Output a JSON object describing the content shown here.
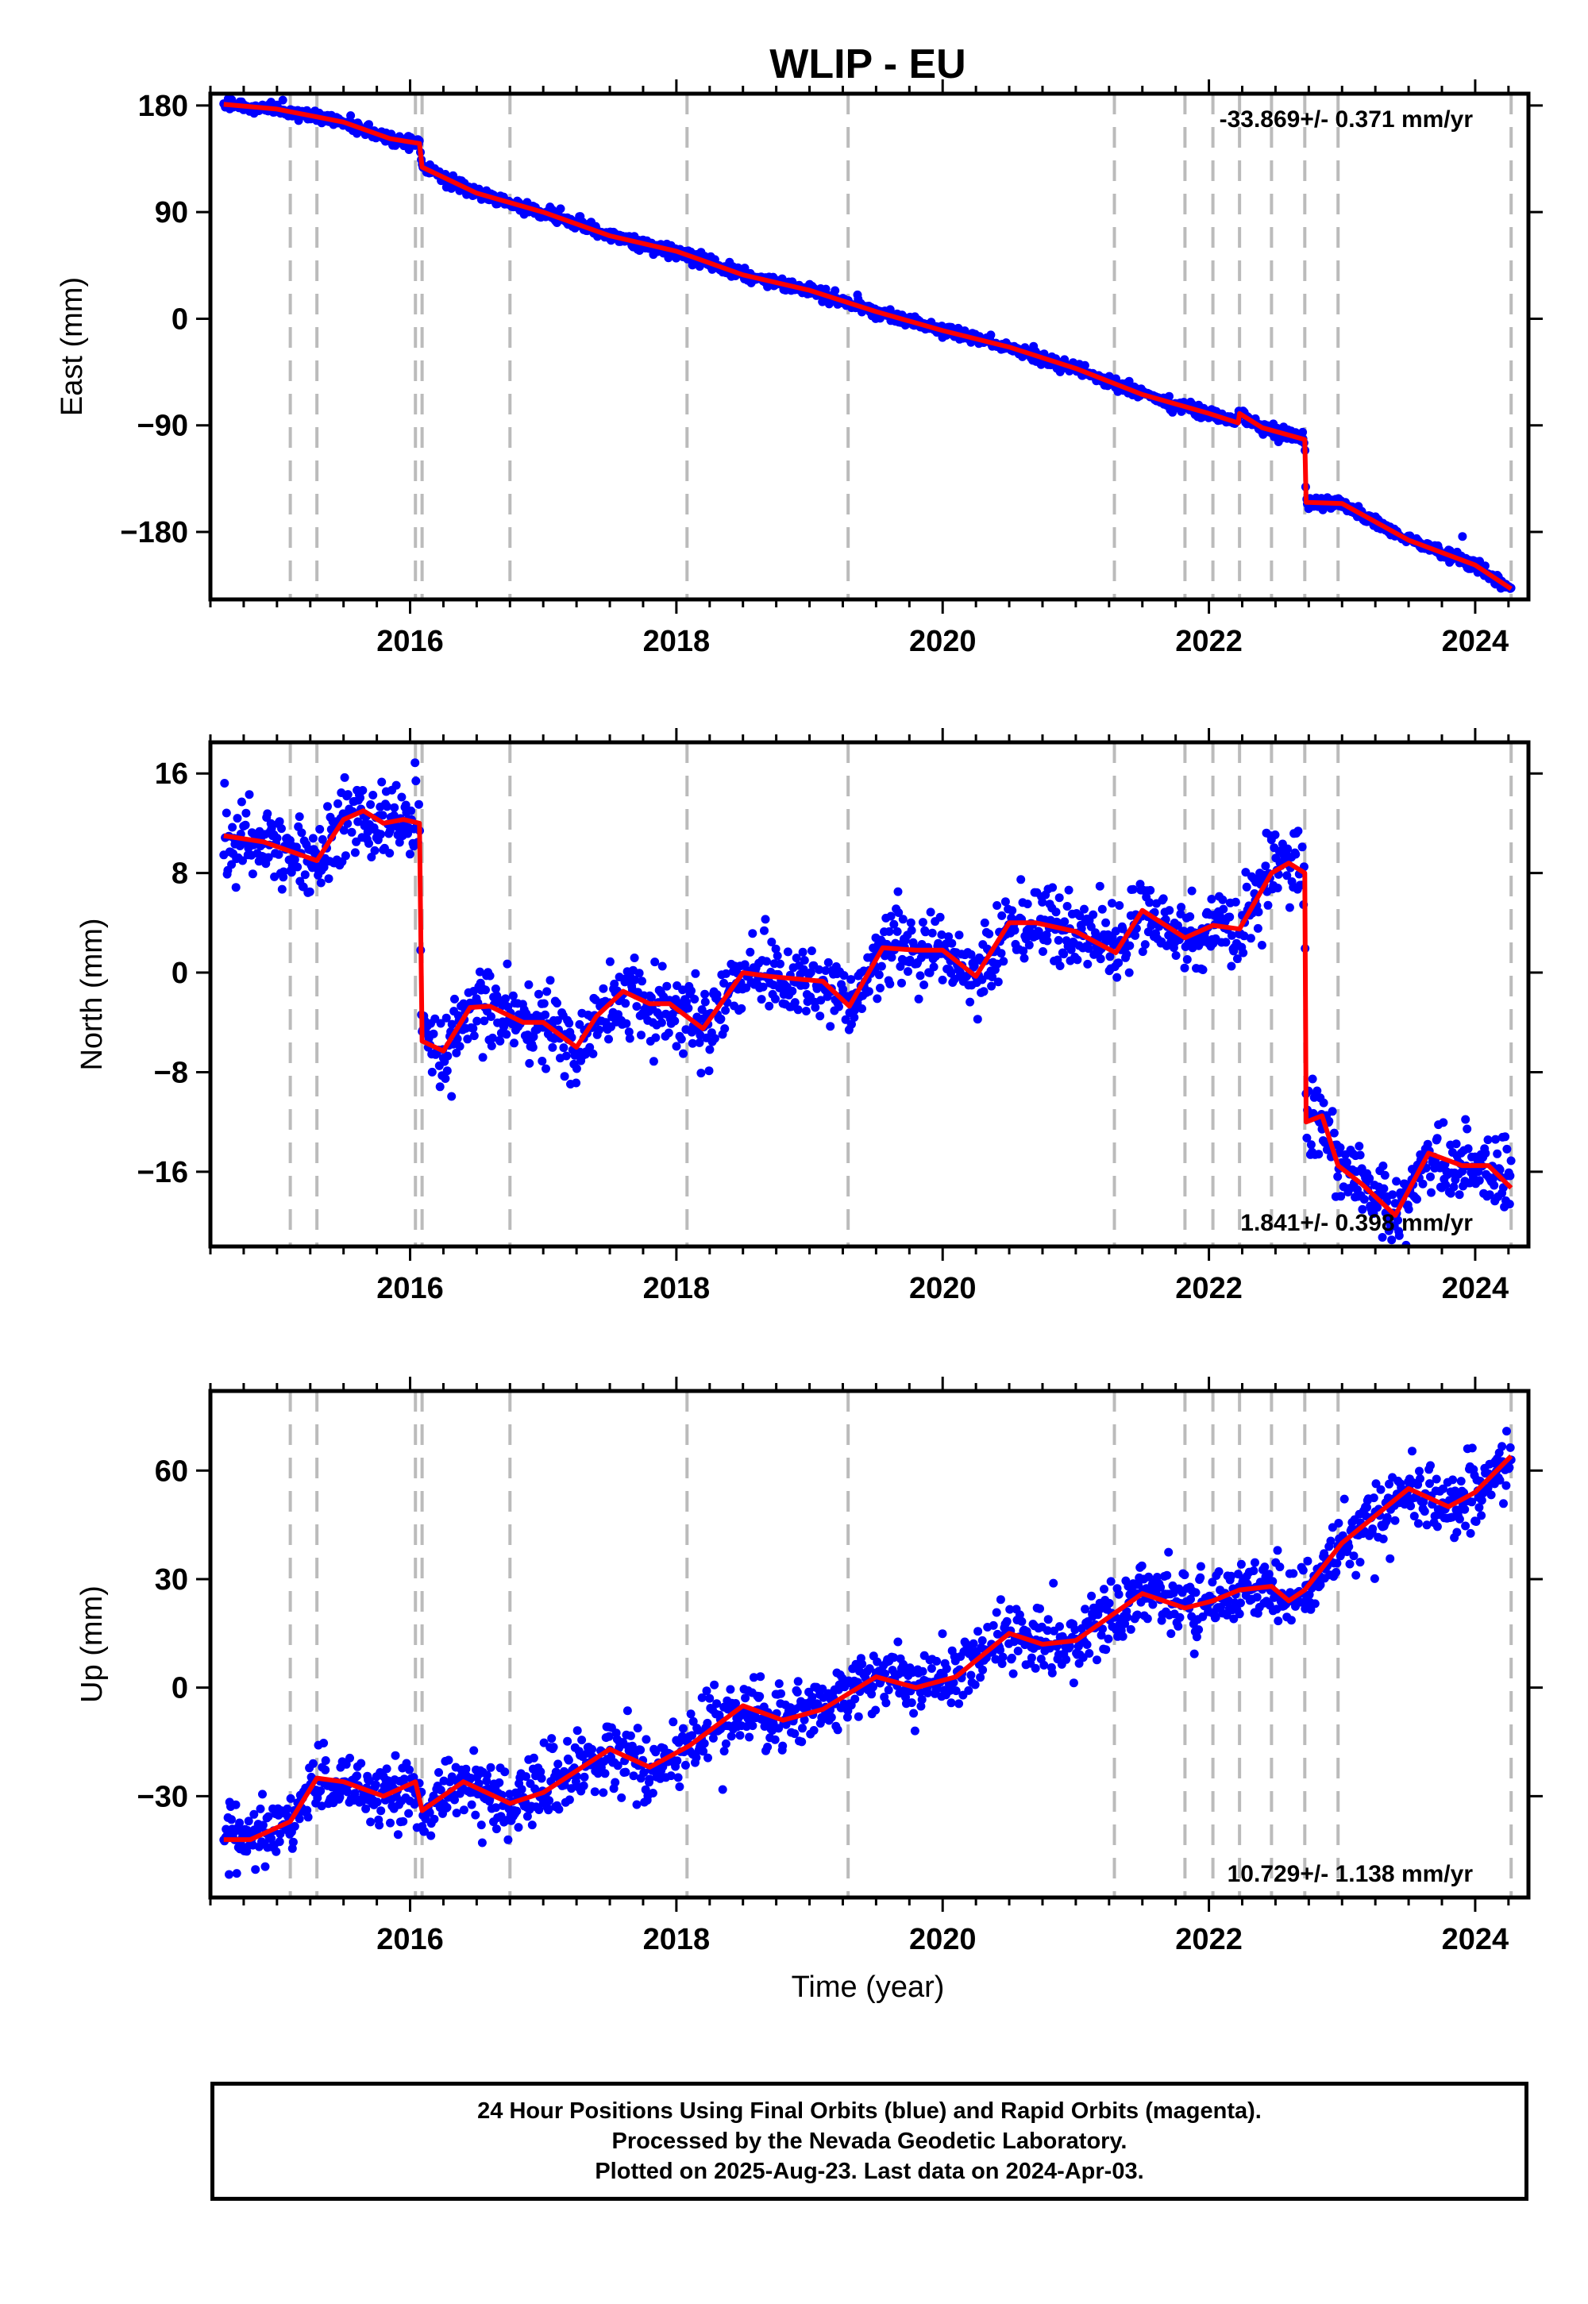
{
  "title": "WLIP - EU",
  "xlabel": "Time (year)",
  "colors": {
    "points": "#0000ff",
    "model": "#ff0000",
    "breaks": "#bbbbbb",
    "frame": "#000000"
  },
  "footer": {
    "line1": "24 Hour Positions Using Final Orbits (blue) and Rapid Orbits (magenta).",
    "line2": "Processed by the Nevada Geodetic Laboratory.",
    "line3": "Plotted on 2025-Aug-23. Last data on 2024-Apr-03."
  },
  "chart_data": [
    {
      "type": "scatter",
      "component": "east",
      "ylabel": "East (mm)",
      "xlim": [
        2014.5,
        2024.4
      ],
      "ylim": [
        -237,
        190
      ],
      "xticks": [
        2016,
        2018,
        2020,
        2022,
        2024
      ],
      "yticks": [
        180,
        90,
        0,
        -90,
        -180
      ],
      "ytick_labels": [
        "180",
        "90",
        "0",
        "−90",
        "−180"
      ],
      "rate_label": "-33.869+/- 0.371 mm/yr",
      "rate_position": "top-right",
      "breaks": [
        2015.1,
        2015.3,
        2016.04,
        2016.09,
        2016.75,
        2018.08,
        2019.29,
        2021.29,
        2021.82,
        2022.03,
        2022.23,
        2022.47,
        2022.72,
        2022.97,
        2024.27
      ],
      "model": {
        "x": [
          2014.6,
          2015.0,
          2015.5,
          2015.85,
          2016.07,
          2016.09,
          2016.5,
          2017.0,
          2017.5,
          2018.0,
          2018.5,
          2019.0,
          2019.5,
          2020.0,
          2020.5,
          2021.0,
          2021.5,
          2022.0,
          2022.22,
          2022.23,
          2022.4,
          2022.72,
          2022.73,
          2023.0,
          2023.5,
          2024.0,
          2024.27
        ],
        "y": [
          181,
          177,
          166,
          152,
          148,
          128,
          106,
          90,
          70,
          57,
          37,
          24,
          6,
          -10,
          -24,
          -42,
          -64,
          -80,
          -88,
          -80,
          -92,
          -102,
          -155,
          -156,
          -187,
          -208,
          -228
        ]
      },
      "scatter_noise": 2.5
    },
    {
      "type": "scatter",
      "component": "north",
      "ylabel": "North (mm)",
      "xlim": [
        2014.5,
        2024.4
      ],
      "ylim": [
        -22,
        18.5
      ],
      "xticks": [
        2016,
        2018,
        2020,
        2022,
        2024
      ],
      "yticks": [
        16,
        8,
        0,
        -8,
        -16
      ],
      "ytick_labels": [
        "16",
        "8",
        "0",
        "−8",
        "−16"
      ],
      "rate_label": "1.841+/- 0.398 mm/yr",
      "rate_position": "bottom-right",
      "breaks": [
        2015.1,
        2015.3,
        2016.04,
        2016.09,
        2016.75,
        2018.08,
        2019.29,
        2021.29,
        2021.82,
        2022.03,
        2022.23,
        2022.47,
        2022.72,
        2022.97,
        2024.27
      ],
      "model": {
        "x": [
          2014.6,
          2014.9,
          2015.3,
          2015.5,
          2015.65,
          2015.8,
          2015.95,
          2016.07,
          2016.09,
          2016.25,
          2016.45,
          2016.6,
          2016.85,
          2017.0,
          2017.25,
          2017.4,
          2017.6,
          2017.8,
          2017.95,
          2018.2,
          2018.5,
          2018.7,
          2019.1,
          2019.3,
          2019.55,
          2019.8,
          2020.0,
          2020.25,
          2020.5,
          2020.7,
          2021.0,
          2021.3,
          2021.5,
          2021.82,
          2022.03,
          2022.23,
          2022.47,
          2022.6,
          2022.72,
          2022.73,
          2022.85,
          2022.97,
          2023.15,
          2023.4,
          2023.65,
          2023.9,
          2024.1,
          2024.27
        ],
        "y": [
          11,
          10.5,
          9,
          12.3,
          13,
          12,
          12.3,
          12,
          -5.5,
          -6.3,
          -2.8,
          -2.7,
          -4,
          -4,
          -6,
          -3.5,
          -1.5,
          -2.5,
          -2.5,
          -4.5,
          0,
          -0.3,
          -0.7,
          -2.7,
          2,
          1.8,
          1.8,
          -0.3,
          4,
          4,
          3.3,
          1.6,
          5,
          2.8,
          3.8,
          3.5,
          8,
          8.8,
          8,
          -12,
          -11.5,
          -15.5,
          -17,
          -19.5,
          -14.5,
          -15.5,
          -15.5,
          -17.3
        ]
      },
      "scatter_noise": 1.5
    },
    {
      "type": "scatter",
      "component": "up",
      "ylabel": "Up (mm)",
      "xlim": [
        2014.5,
        2024.4
      ],
      "ylim": [
        -58,
        82
      ],
      "xticks": [
        2016,
        2018,
        2020,
        2022,
        2024
      ],
      "yticks": [
        60,
        30,
        0,
        -30
      ],
      "ytick_labels": [
        "60",
        "30",
        "0",
        "−30"
      ],
      "rate_label": "10.729+/- 1.138 mm/yr",
      "rate_position": "bottom-right",
      "breaks": [
        2015.1,
        2015.3,
        2016.04,
        2016.09,
        2016.75,
        2018.08,
        2019.29,
        2021.29,
        2021.82,
        2022.03,
        2022.23,
        2022.47,
        2022.72,
        2022.97,
        2024.27
      ],
      "model": {
        "x": [
          2014.6,
          2014.8,
          2015.1,
          2015.3,
          2015.5,
          2015.8,
          2016.04,
          2016.09,
          2016.4,
          2016.75,
          2017.0,
          2017.5,
          2017.8,
          2018.1,
          2018.5,
          2018.8,
          2019.1,
          2019.5,
          2019.8,
          2020.1,
          2020.5,
          2020.75,
          2021.0,
          2021.5,
          2021.82,
          2022.03,
          2022.23,
          2022.47,
          2022.6,
          2022.72,
          2023.0,
          2023.5,
          2023.8,
          2024.0,
          2024.27
        ],
        "y": [
          -42,
          -42,
          -37,
          -25,
          -26,
          -30,
          -26,
          -34,
          -26,
          -32,
          -29,
          -17,
          -22,
          -16,
          -5,
          -9,
          -6,
          3,
          0,
          3,
          15,
          12,
          13,
          26,
          22,
          24,
          27,
          28,
          24,
          27,
          40,
          55,
          50,
          54,
          64
        ]
      },
      "scatter_noise": 4.5
    }
  ]
}
